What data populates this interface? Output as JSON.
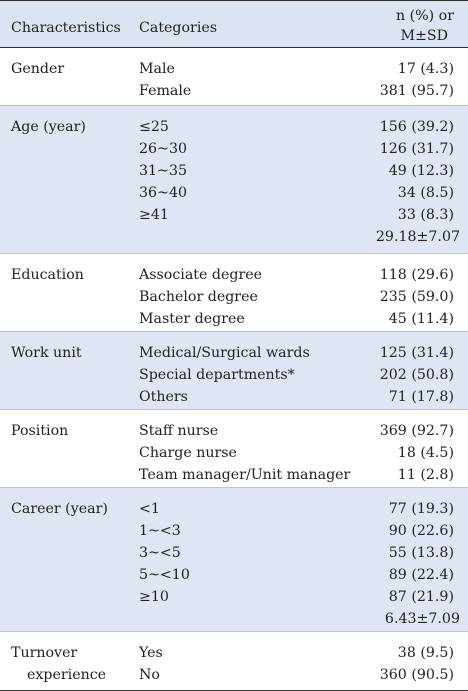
{
  "header": {
    "characteristics": "Characteristics",
    "categories": "Categories",
    "value_line1": "n (%) or",
    "value_line2": "M±SD"
  },
  "groups": [
    {
      "label": [
        "Gender"
      ],
      "categories": [
        "Male",
        "Female"
      ],
      "values": [
        "17 (4.3)",
        "381 (95.7)"
      ]
    },
    {
      "label": [
        "Age (year)"
      ],
      "categories": [
        "≤25",
        "26~30",
        "31~35",
        "36~40",
        "≥41"
      ],
      "values": [
        "156 (39.2)",
        "126 (31.7)",
        "49 (12.3)",
        "34 (8.5)",
        "33 (8.3)",
        "29.18±7.07"
      ]
    },
    {
      "label": [
        "Education"
      ],
      "categories": [
        "Associate degree",
        "Bachelor degree",
        "Master degree"
      ],
      "values": [
        "118 (29.6)",
        "235 (59.0)",
        "45 (11.4)"
      ]
    },
    {
      "label": [
        "Work unit"
      ],
      "categories": [
        "Medical/Surgical wards",
        "Special departments*",
        "Others"
      ],
      "values": [
        "125 (31.4)",
        "202 (50.8)",
        "71 (17.8)"
      ]
    },
    {
      "label": [
        "Position"
      ],
      "categories": [
        "Staff nurse",
        "Charge nurse",
        "Team manager/Unit manager"
      ],
      "values": [
        "369 (92.7)",
        "18 (4.5)",
        "11 (2.8)"
      ]
    },
    {
      "label": [
        "Career (year)"
      ],
      "categories": [
        "<1",
        "1~<3",
        "3~<5",
        "5~<10",
        "≥10"
      ],
      "values": [
        "77 (19.3)",
        "90 (22.6)",
        "55 (13.8)",
        "89 (22.4)",
        "87 (21.9)",
        "6.43±7.09"
      ]
    },
    {
      "label": [
        "Turnover",
        "experience"
      ],
      "categories": [
        "Yes",
        "No"
      ],
      "values": [
        "38 (9.5)",
        "360 (90.5)"
      ]
    }
  ]
}
